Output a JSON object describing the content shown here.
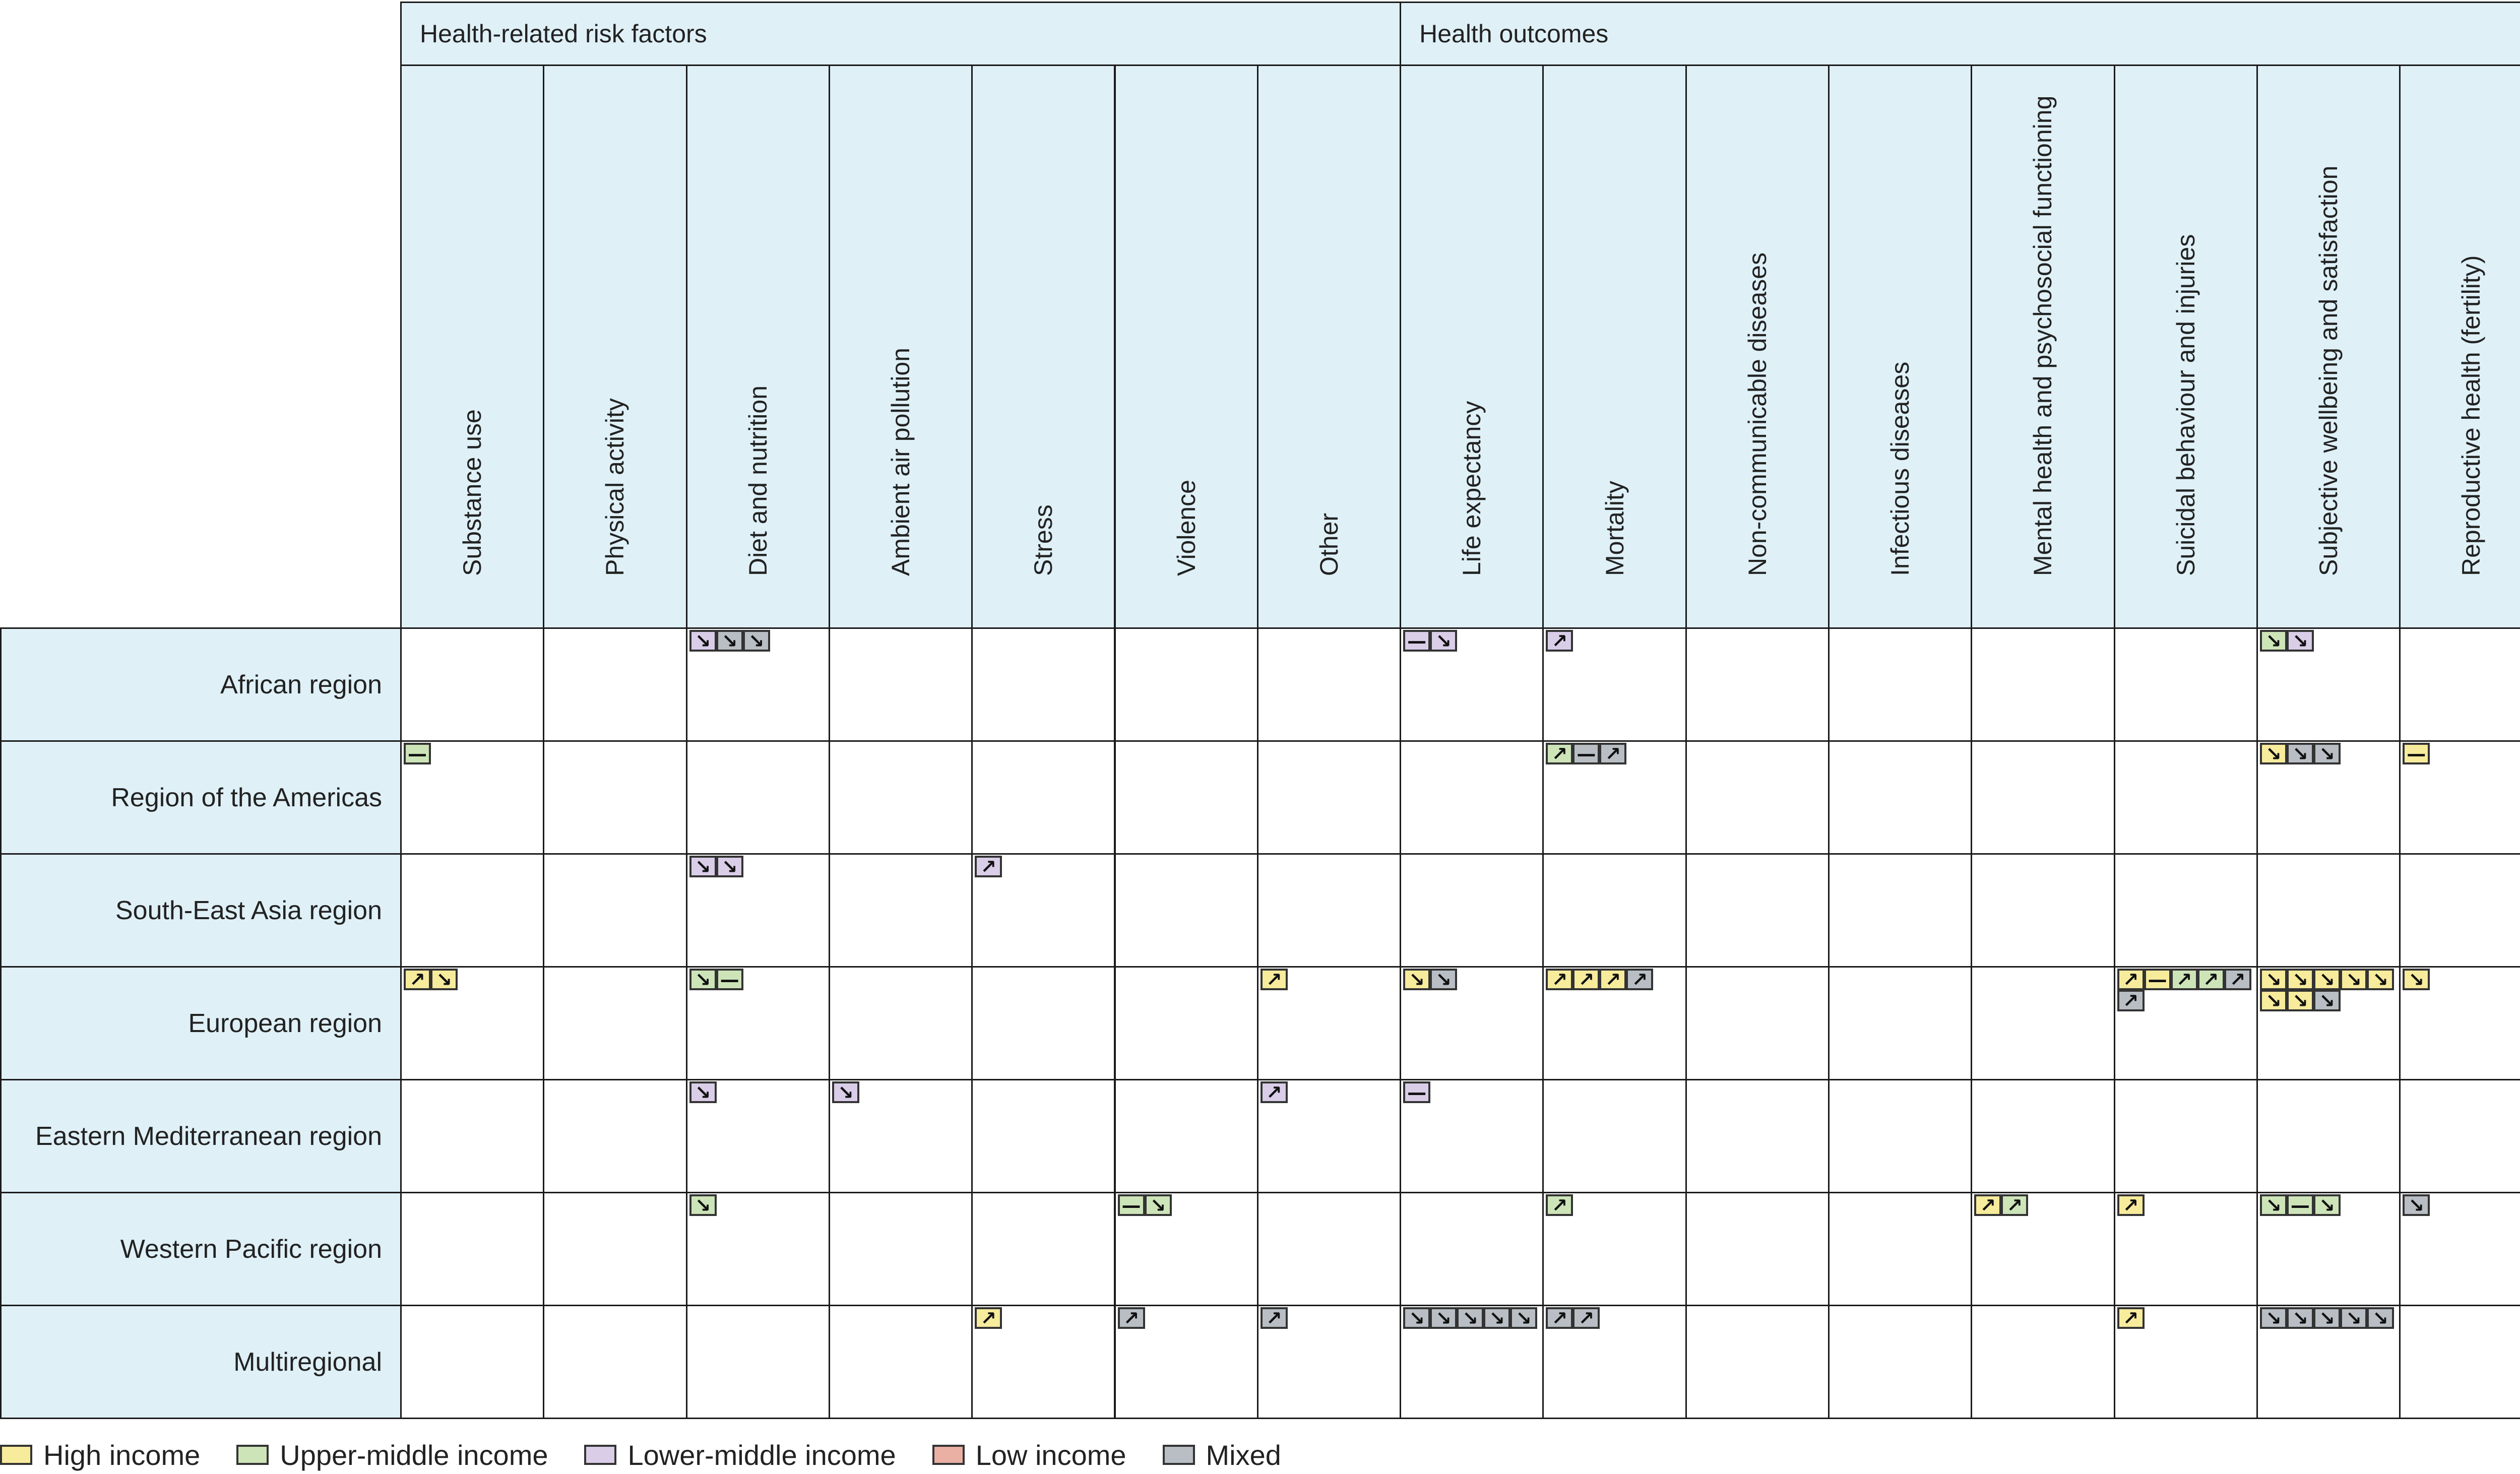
{
  "header_groups": [
    {
      "label": "Health-related risk factors",
      "span": 7
    },
    {
      "label": "Health outcomes",
      "span": 8
    }
  ],
  "columns": [
    "Substance use",
    "Physical activity",
    "Diet and nutrition",
    "Ambient air pollution",
    "Stress",
    "Violence",
    "Other",
    "Life expectancy",
    "Mortality",
    "Non-communicable diseases",
    "Infectious diseases",
    "Mental health and psychosocial functioning",
    "Suicidal behaviour and injuries",
    "Subjective wellbeing and satisfaction",
    "Reproductive health (fertility)"
  ],
  "rows": [
    "African region",
    "Region of the Americas",
    "South-East Asia region",
    "European region",
    "Eastern Mediterranean region",
    "Western Pacific region",
    "Multiregional"
  ],
  "category_colors": {
    "H": "#f7eb9c",
    "U": "#cde4b8",
    "L": "#d9cde8",
    "W": "#eab0a4",
    "M": "#b8bec4"
  },
  "direction_symbols": {
    "up": "↗",
    "down": "↘",
    "flat": "—"
  },
  "cells": [
    [
      [],
      [],
      [
        [
          "L",
          "down"
        ],
        [
          "M",
          "down"
        ],
        [
          "M",
          "down"
        ]
      ],
      [],
      [],
      [],
      [],
      [
        [
          "L",
          "flat"
        ],
        [
          "L",
          "down"
        ]
      ],
      [
        [
          "L",
          "up"
        ]
      ],
      [],
      [],
      [],
      [],
      [
        [
          "U",
          "down"
        ],
        [
          "L",
          "down"
        ]
      ],
      []
    ],
    [
      [
        [
          "U",
          "flat"
        ]
      ],
      [],
      [],
      [],
      [],
      [],
      [],
      [],
      [
        [
          "U",
          "up"
        ],
        [
          "M",
          "flat"
        ],
        [
          "M",
          "up"
        ]
      ],
      [],
      [],
      [],
      [],
      [
        [
          "H",
          "down"
        ],
        [
          "M",
          "down"
        ],
        [
          "M",
          "down"
        ]
      ],
      [
        [
          "H",
          "flat"
        ]
      ]
    ],
    [
      [],
      [],
      [
        [
          "L",
          "down"
        ],
        [
          "L",
          "down"
        ]
      ],
      [],
      [
        [
          "L",
          "up"
        ]
      ],
      [],
      [],
      [],
      [],
      [],
      [],
      [],
      [],
      [],
      []
    ],
    [
      [
        [
          "H",
          "up"
        ],
        [
          "H",
          "down"
        ]
      ],
      [],
      [
        [
          "U",
          "down"
        ],
        [
          "U",
          "flat"
        ]
      ],
      [],
      [],
      [],
      [
        [
          "H",
          "up"
        ]
      ],
      [
        [
          "H",
          "down"
        ],
        [
          "M",
          "down"
        ]
      ],
      [
        [
          "H",
          "up"
        ],
        [
          "H",
          "up"
        ],
        [
          "H",
          "up"
        ],
        [
          "M",
          "up"
        ]
      ],
      [],
      [],
      [],
      [
        [
          "H",
          "up"
        ],
        [
          "H",
          "flat"
        ],
        [
          "U",
          "up"
        ],
        [
          "U",
          "up"
        ],
        [
          "M",
          "up"
        ],
        [
          "M",
          "up"
        ]
      ],
      [
        [
          "H",
          "down"
        ],
        [
          "H",
          "down"
        ],
        [
          "H",
          "down"
        ],
        [
          "H",
          "down"
        ],
        [
          "H",
          "down"
        ],
        [
          "H",
          "down"
        ],
        [
          "H",
          "down"
        ],
        [
          "M",
          "down"
        ]
      ],
      [
        [
          "H",
          "down"
        ]
      ]
    ],
    [
      [],
      [],
      [
        [
          "L",
          "down"
        ]
      ],
      [
        [
          "L",
          "down"
        ]
      ],
      [],
      [],
      [
        [
          "L",
          "up"
        ]
      ],
      [
        [
          "L",
          "flat"
        ]
      ],
      [],
      [],
      [],
      [],
      [],
      [],
      []
    ],
    [
      [],
      [],
      [
        [
          "U",
          "down"
        ]
      ],
      [],
      [],
      [
        [
          "U",
          "flat"
        ],
        [
          "U",
          "down"
        ]
      ],
      [],
      [],
      [
        [
          "U",
          "up"
        ]
      ],
      [],
      [],
      [
        [
          "H",
          "up"
        ],
        [
          "U",
          "up"
        ]
      ],
      [
        [
          "H",
          "up"
        ]
      ],
      [
        [
          "U",
          "down"
        ],
        [
          "U",
          "flat"
        ],
        [
          "U",
          "down"
        ]
      ],
      [
        [
          "M",
          "down"
        ]
      ]
    ],
    [
      [],
      [],
      [],
      [],
      [
        [
          "H",
          "up"
        ]
      ],
      [
        [
          "M",
          "up"
        ]
      ],
      [
        [
          "M",
          "up"
        ]
      ],
      [
        [
          "M",
          "down"
        ],
        [
          "M",
          "down"
        ],
        [
          "M",
          "down"
        ],
        [
          "M",
          "down"
        ],
        [
          "M",
          "down"
        ]
      ],
      [
        [
          "M",
          "up"
        ],
        [
          "M",
          "up"
        ]
      ],
      [],
      [],
      [],
      [
        [
          "H",
          "up"
        ]
      ],
      [
        [
          "M",
          "down"
        ],
        [
          "M",
          "down"
        ],
        [
          "M",
          "down"
        ],
        [
          "M",
          "down"
        ],
        [
          "M",
          "down"
        ]
      ],
      []
    ]
  ],
  "legend": [
    {
      "key": "H",
      "label": "High income"
    },
    {
      "key": "U",
      "label": "Upper-middle income"
    },
    {
      "key": "L",
      "label": "Lower-middle income"
    },
    {
      "key": "W",
      "label": "Low income"
    },
    {
      "key": "M",
      "label": "Mixed"
    }
  ]
}
